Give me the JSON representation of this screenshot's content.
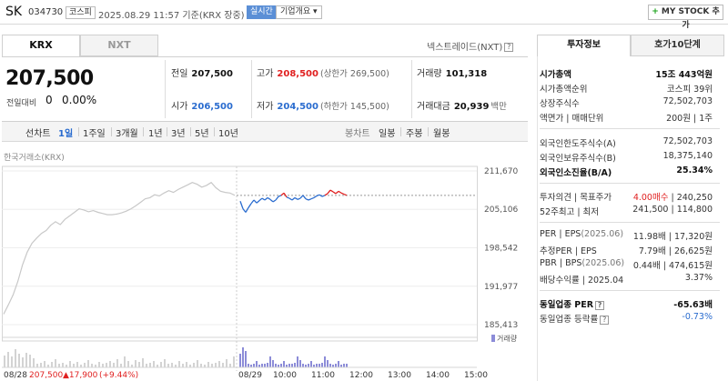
{
  "header": {
    "name": "SK",
    "code": "034730",
    "market": "코스피",
    "datetime": "2025.08.29 11:57 기준(KRX 장중)",
    "live_badge": "실시간",
    "corp_overview": "기업개요 ▾",
    "my_stock_button": "MY STOCK 추가",
    "my_stock_plus": "+"
  },
  "market_tabs": {
    "krx": "KRX",
    "nxt": "NXT"
  },
  "nextrade_label": "넥스트레이드(NXT)",
  "help_glyph": "?",
  "price": {
    "current": "207,500",
    "change_label": "전일대비",
    "change_value": "0",
    "change_pct": "0.00%"
  },
  "summary": {
    "prev_close": {
      "label": "전일",
      "value": "207,500"
    },
    "high": {
      "label": "고가",
      "value": "208,500",
      "sub": "(상한가 269,500)"
    },
    "volume": {
      "label": "거래량",
      "value": "101,318"
    },
    "open": {
      "label": "시가",
      "value": "206,500"
    },
    "low": {
      "label": "저가",
      "value": "204,500",
      "sub": "(하한가 145,500)"
    },
    "amount": {
      "label": "거래대금",
      "value": "20,939",
      "unit": "백만"
    }
  },
  "chart_tools": {
    "candle_label": "선차트",
    "periods": [
      "1일",
      "1주일",
      "3개월",
      "1년",
      "3년",
      "5년",
      "10년"
    ],
    "selected_period": "1일",
    "bong_label": "봉차트",
    "bong_types": [
      "일봉",
      "주봉",
      "월봉"
    ]
  },
  "chart_data": {
    "type": "line",
    "title": "",
    "source_label": "한국거래소(KRX)",
    "y_ticks": [
      "211,670",
      "205,106",
      "198,542",
      "191,977",
      "185,413"
    ],
    "y_tick_values": [
      211670,
      205106,
      198542,
      191977,
      185413
    ],
    "ylim": [
      185413,
      211670
    ],
    "reference_value": 207500,
    "x_ticks": [
      "08/29",
      "10:00",
      "11:00",
      "12:00",
      "13:00",
      "14:00",
      "15:00"
    ],
    "prev_day_label": "08/28",
    "prev_day_close": "207,500",
    "prev_day_change": "▲17,900",
    "prev_day_change_pct": "(+9.44%)",
    "volume_legend": "거래량",
    "prev_day_series": [
      187200,
      188800,
      190500,
      192800,
      195600,
      197800,
      199300,
      200200,
      201000,
      201500,
      202400,
      203000,
      202500,
      203400,
      204000,
      204600,
      205200,
      205000,
      204700,
      204900,
      204600,
      204400,
      204200,
      204200,
      204300,
      204500,
      204800,
      205200,
      205700,
      206300,
      206900,
      207100,
      207600,
      207400,
      207900,
      208300,
      208000,
      208500,
      208900,
      209300,
      209700,
      209400,
      208900,
      209200,
      209700,
      208800,
      208200,
      208000,
      207900,
      207500
    ],
    "today_series": [
      206500,
      205200,
      204600,
      205400,
      206100,
      206700,
      206200,
      206600,
      207000,
      206700,
      207100,
      206800,
      206400,
      206700,
      207300,
      207500,
      207900,
      207200,
      207000,
      206700,
      207100,
      206800,
      207000,
      207500,
      206900,
      206700,
      206900,
      207100,
      207400,
      207600,
      207300,
      207500,
      207800,
      208400,
      208100,
      207800,
      208200,
      207900,
      207700,
      207500
    ],
    "colors": {
      "up": "#e02020",
      "down": "#2a6ccf",
      "prev": "#c8c8c8",
      "reference": "#999999"
    }
  },
  "info_tabs": {
    "active": "투자정보",
    "other": "호가10단계"
  },
  "investment_info": {
    "market_cap": {
      "label": "시가총액",
      "value": "15조 443억원"
    },
    "market_cap_rank": {
      "label": "시가총액순위",
      "value": "코스피 39위"
    },
    "listed_shares": {
      "label": "상장주식수",
      "value": "72,502,703"
    },
    "face_value": {
      "label": "액면가 | 매매단위",
      "value": "200원 | 1주"
    },
    "foreign_limit": {
      "label": "외국인한도주식수(A)",
      "value": "72,502,703"
    },
    "foreign_holding": {
      "label": "외국인보유주식수(B)",
      "value": "18,375,140"
    },
    "foreign_ratio": {
      "label": "외국인소진율(B/A)",
      "value": "25.34%"
    },
    "opinion": {
      "label": "투자의견 | 목표주가",
      "opinion": "4.00매수",
      "target": "240,250"
    },
    "week52": {
      "label": "52주최고 | 최저",
      "value": "241,500 | 114,800"
    },
    "per_eps": {
      "label": "PER | EPS",
      "sub": "(2025.06)",
      "value": "11.98배 | 17,320원"
    },
    "est_per_eps": {
      "label": "추정PER | EPS",
      "value": "7.79배 | 26,625원"
    },
    "pbr_bps": {
      "label": "PBR | BPS",
      "sub": "(2025.06)",
      "value": "0.44배 | 474,615원"
    },
    "dividend": {
      "label": "배당수익률 | 2025.04",
      "value": "3.37%"
    },
    "sector_per": {
      "label": "동일업종 PER",
      "value": "-65.63배"
    },
    "sector_change": {
      "label": "동일업종 등락률",
      "value": "-0.73%"
    }
  }
}
